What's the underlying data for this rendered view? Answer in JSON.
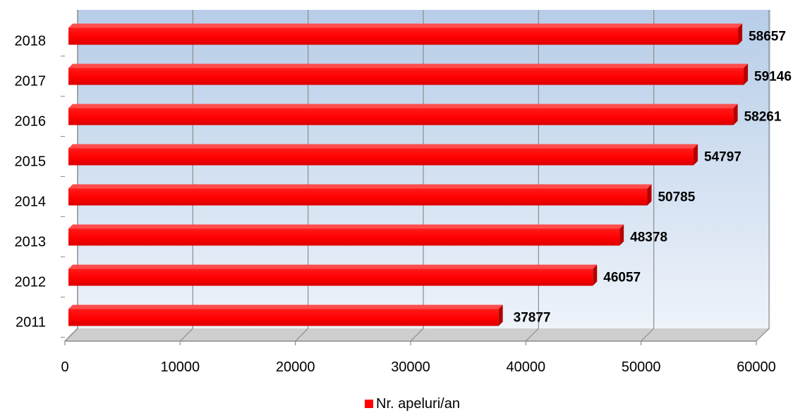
{
  "chart_data": {
    "type": "bar",
    "orientation": "horizontal",
    "title": "",
    "categories": [
      "2011",
      "2012",
      "2013",
      "2014",
      "2015",
      "2016",
      "2017",
      "2018"
    ],
    "series": [
      {
        "name": "Nr. apeluri/an",
        "values": [
          37877,
          46057,
          48378,
          50785,
          54797,
          58261,
          59146,
          58657
        ]
      }
    ],
    "xlim": [
      0,
      60000
    ],
    "x_ticks": [
      "0",
      "10000",
      "20000",
      "30000",
      "40000",
      "50000",
      "60000"
    ],
    "grid": true,
    "legend_position": "bottom",
    "data_labels": true,
    "colors": {
      "bar": "#ff0000",
      "bar_dark": "#b30000",
      "plot_bg_top": "#b7cde8",
      "plot_bg_bottom": "#eef3fa",
      "grid": "#8c8c8c"
    }
  }
}
